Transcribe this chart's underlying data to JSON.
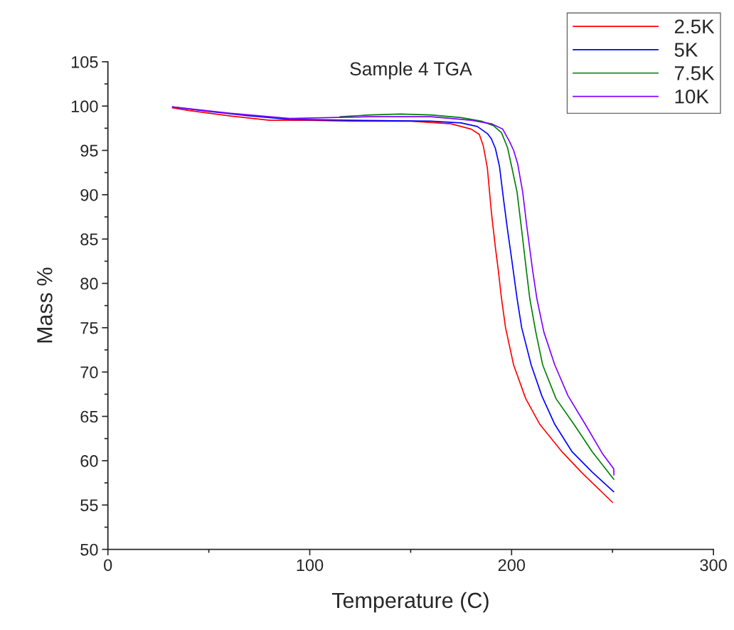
{
  "chart_data": {
    "type": "line",
    "title": "Sample 4 TGA",
    "xlabel": "Temperature (C)",
    "ylabel": "Mass %",
    "xlim": [
      0,
      300
    ],
    "xticks": [
      0,
      100,
      200,
      300
    ],
    "ylim": [
      50,
      105
    ],
    "yticks": [
      50,
      55,
      60,
      65,
      70,
      75,
      80,
      85,
      90,
      95,
      100,
      105
    ],
    "grid": false,
    "legend": "top right",
    "marker": "none",
    "line_style": "solid",
    "series": [
      {
        "name": "2.5K",
        "color": "#ff0000",
        "x": [
          32,
          40,
          60,
          80,
          100,
          120,
          150,
          170,
          180,
          184,
          186,
          188,
          190,
          192,
          193.4,
          195,
          197,
          201,
          207,
          214,
          225,
          235,
          250
        ],
        "values": [
          99.8,
          99.5,
          98.9,
          98.4,
          98.4,
          98.3,
          98.3,
          98.0,
          97.4,
          96.8,
          95.5,
          93.0,
          88.0,
          84.0,
          81.5,
          78.3,
          75.0,
          70.8,
          67.0,
          64.1,
          61.0,
          58.6,
          55.3
        ]
      },
      {
        "name": "5K",
        "color": "#0000ff",
        "x": [
          32,
          50,
          70,
          90,
          120,
          160,
          175,
          183,
          188,
          190,
          192,
          194,
          196,
          198,
          200,
          202.7,
          205,
          209.7,
          215,
          221.4,
          230,
          240,
          250.6
        ],
        "values": [
          99.9,
          99.4,
          98.9,
          98.5,
          98.4,
          98.3,
          98.1,
          97.7,
          96.9,
          96.3,
          95.2,
          93.2,
          89.5,
          86.0,
          82.8,
          78.3,
          75.0,
          70.8,
          67.3,
          64.1,
          61.0,
          58.7,
          56.5
        ]
      },
      {
        "name": "7.5K",
        "color": "#008000",
        "x": [
          115,
          130,
          145,
          160,
          175,
          185,
          191,
          195,
          198,
          200.2,
          202.7,
          205,
          207.3,
          209,
          212,
          215.4,
          222,
          230.9,
          240,
          250.6
        ],
        "values": [
          98.8,
          99.0,
          99.1,
          99.0,
          98.7,
          98.3,
          97.8,
          97.0,
          95.3,
          93.0,
          90.3,
          86.0,
          81.5,
          78.3,
          74.5,
          70.8,
          67.0,
          64.1,
          61.0,
          57.9
        ]
      },
      {
        "name": "10K",
        "color": "#8000ff",
        "x": [
          32,
          60,
          90,
          130,
          160,
          180,
          190,
          195.6,
          199,
          201,
          203,
          205.5,
          207.5,
          210.4,
          212.5,
          216,
          221.4,
          228,
          236.5,
          245,
          250.6,
          250.7
        ],
        "values": [
          99.9,
          99.2,
          98.6,
          98.8,
          98.8,
          98.4,
          98.0,
          97.4,
          96.0,
          95.0,
          93.5,
          90.3,
          86.5,
          81.5,
          78.3,
          74.5,
          70.8,
          67.3,
          64.1,
          60.8,
          59.1,
          58.4
        ]
      }
    ]
  }
}
